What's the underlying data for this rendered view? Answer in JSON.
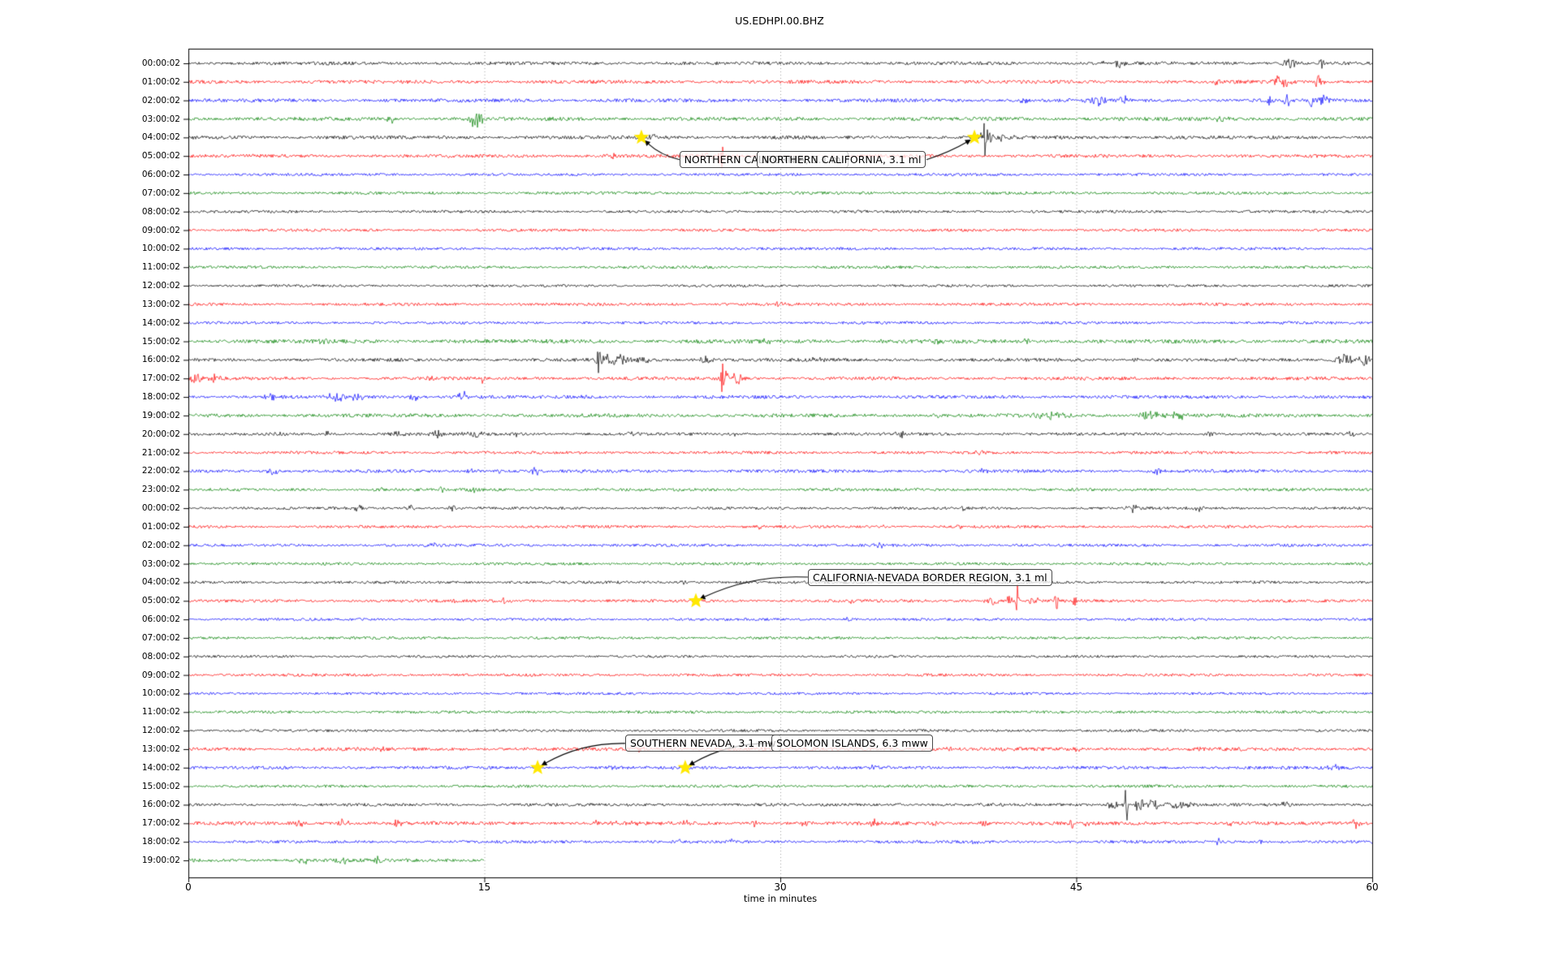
{
  "window": {
    "title": "US.EDHPI.00.BHZ"
  },
  "chart_data": {
    "type": "line",
    "subtype": "helicorder-day-plot",
    "title": "US.EDHPI.00.BHZ",
    "xlabel": "time in minutes",
    "xlim": [
      0,
      60
    ],
    "x_ticks": [
      0,
      15,
      30,
      45,
      60
    ],
    "x_gridlines": [
      15,
      30,
      45
    ],
    "grid": "dotted-vertical",
    "legend": "none",
    "color_cycle": [
      "#000000",
      "#ff0000",
      "#0000ff",
      "#008000"
    ],
    "star_color": "#ffe800",
    "frame_color": "#000000",
    "rows": [
      {
        "label": "00:00:02",
        "noise": 1.8,
        "end": 60,
        "events": [
          [
            46.3,
            3,
            0.2
          ],
          [
            47.2,
            5,
            0.3
          ],
          [
            55.8,
            5,
            0.4
          ],
          [
            57.4,
            9,
            0.12
          ]
        ]
      },
      {
        "label": "01:00:02",
        "noise": 1.9,
        "end": 60,
        "events": [
          [
            52.1,
            4,
            0.15
          ],
          [
            55.4,
            8,
            0.45
          ],
          [
            57.3,
            11,
            0.2
          ]
        ]
      },
      {
        "label": "02:00:02",
        "noise": 1.9,
        "end": 60,
        "events": [
          [
            42.3,
            6,
            0.25
          ],
          [
            46.0,
            7,
            0.45
          ],
          [
            47.5,
            6,
            0.25
          ],
          [
            54.8,
            7,
            0.18
          ],
          [
            55.7,
            8,
            0.2
          ],
          [
            56.9,
            11,
            0.1
          ],
          [
            57.6,
            6,
            0.35
          ]
        ]
      },
      {
        "label": "03:00:02",
        "noise": 2.0,
        "end": 60,
        "events": [
          [
            10.3,
            5,
            0.25
          ],
          [
            14.6,
            12,
            0.3
          ],
          [
            52.3,
            3,
            0.5
          ]
        ]
      },
      {
        "label": "04:00:02",
        "noise": 1.9,
        "end": 60,
        "events": [
          [
            23.6,
            3.5,
            0.4
          ],
          [
            40.37,
            45,
            0.06
          ],
          [
            40.4,
            13,
            0.3
          ],
          [
            41.2,
            5,
            0.6
          ]
        ]
      },
      {
        "label": "05:00:02",
        "noise": 1.8,
        "end": 60,
        "events": [
          [
            21.5,
            3,
            0.3
          ],
          [
            26.3,
            5,
            0.3
          ],
          [
            27.0,
            24,
            0.1
          ]
        ]
      },
      {
        "label": "06:00:02",
        "noise": 1.5,
        "end": 60,
        "events": []
      },
      {
        "label": "07:00:02",
        "noise": 1.6,
        "end": 60,
        "events": []
      },
      {
        "label": "08:00:02",
        "noise": 1.5,
        "end": 60,
        "events": []
      },
      {
        "label": "09:00:02",
        "noise": 1.5,
        "end": 60,
        "events": []
      },
      {
        "label": "10:00:02",
        "noise": 1.5,
        "end": 60,
        "events": []
      },
      {
        "label": "11:00:02",
        "noise": 1.5,
        "end": 60,
        "events": []
      },
      {
        "label": "12:00:02",
        "noise": 1.4,
        "end": 60,
        "events": []
      },
      {
        "label": "13:00:02",
        "noise": 1.6,
        "end": 60,
        "events": [
          [
            30,
            2.5,
            0.4
          ]
        ]
      },
      {
        "label": "14:00:02",
        "noise": 1.5,
        "end": 60,
        "events": []
      },
      {
        "label": "15:00:02",
        "noise": 2.2,
        "end": 60,
        "events": [
          [
            6.8,
            3,
            0.4
          ],
          [
            29.2,
            3.5,
            0.3
          ],
          [
            35,
            2.5,
            0.3
          ],
          [
            38,
            3,
            0.3
          ],
          [
            42.5,
            4,
            0.25
          ]
        ]
      },
      {
        "label": "16:00:02",
        "noise": 1.8,
        "end": 60,
        "events": [
          [
            20.8,
            32,
            0.1
          ],
          [
            21.5,
            8,
            0.8
          ],
          [
            23,
            4,
            0.8
          ],
          [
            26.2,
            6,
            0.4
          ],
          [
            32,
            3,
            0.4
          ],
          [
            48,
            3,
            0.3
          ],
          [
            58.6,
            7,
            0.5
          ],
          [
            59.6,
            6,
            0.3
          ]
        ]
      },
      {
        "label": "17:00:02",
        "noise": 1.8,
        "end": 60,
        "events": [
          [
            0.4,
            6,
            0.3
          ],
          [
            1.3,
            5,
            0.25
          ],
          [
            12.3,
            3,
            0.2
          ],
          [
            14.9,
            7,
            0.1
          ],
          [
            27.1,
            20,
            0.25
          ],
          [
            27.8,
            6,
            0.4
          ]
        ]
      },
      {
        "label": "18:00:02",
        "noise": 1.8,
        "end": 60,
        "events": [
          [
            4.2,
            5,
            0.25
          ],
          [
            7.5,
            6,
            0.5
          ],
          [
            8.5,
            5,
            0.4
          ],
          [
            11.5,
            4,
            0.3
          ],
          [
            13.9,
            7,
            0.3
          ],
          [
            20,
            3,
            0.3
          ]
        ]
      },
      {
        "label": "19:00:02",
        "noise": 2.0,
        "end": 60,
        "events": [
          [
            37.8,
            3,
            0.25
          ],
          [
            43.5,
            4,
            0.9
          ],
          [
            48.8,
            6,
            0.7
          ],
          [
            50.2,
            5,
            0.4
          ]
        ]
      },
      {
        "label": "20:00:02",
        "noise": 1.6,
        "end": 60,
        "events": [
          [
            4.7,
            2.5,
            0.2
          ],
          [
            7.0,
            7,
            0.1
          ],
          [
            10.6,
            4,
            0.5
          ],
          [
            12.6,
            4,
            0.4
          ],
          [
            14.5,
            3,
            0.5
          ],
          [
            16.5,
            4,
            0.35
          ],
          [
            22.6,
            3,
            0.3
          ],
          [
            27.8,
            3,
            0.25
          ],
          [
            36.1,
            4,
            0.35
          ],
          [
            51.8,
            4,
            0.25
          ],
          [
            59,
            3,
            0.3
          ]
        ]
      },
      {
        "label": "21:00:02",
        "noise": 1.6,
        "end": 60,
        "events": [
          [
            40.2,
            3,
            0.25
          ]
        ]
      },
      {
        "label": "22:00:02",
        "noise": 1.7,
        "end": 60,
        "events": [
          [
            4.3,
            5,
            0.35
          ],
          [
            14.3,
            3,
            0.4
          ],
          [
            15.8,
            3,
            0.15
          ],
          [
            17.6,
            6,
            0.2
          ],
          [
            40.3,
            3,
            0.25
          ],
          [
            49,
            4,
            0.35
          ]
        ]
      },
      {
        "label": "23:00:02",
        "noise": 1.6,
        "end": 60,
        "events": [
          [
            9.6,
            3,
            0.25
          ],
          [
            12.9,
            5,
            0.12
          ],
          [
            14.5,
            3,
            0.3
          ]
        ]
      },
      {
        "label": "00:00:02",
        "noise": 1.5,
        "end": 60,
        "events": [
          [
            8.6,
            4,
            0.2
          ],
          [
            11.2,
            4,
            0.25
          ],
          [
            13.4,
            3,
            0.2
          ],
          [
            39.3,
            3,
            0.2
          ],
          [
            47.8,
            5,
            0.35
          ],
          [
            51.3,
            5,
            0.25
          ]
        ]
      },
      {
        "label": "01:00:02",
        "noise": 1.5,
        "end": 60,
        "events": [
          [
            29,
            3,
            0.2
          ],
          [
            35.2,
            5,
            0.12
          ],
          [
            39,
            6,
            0.12
          ]
        ]
      },
      {
        "label": "02:00:02",
        "noise": 1.5,
        "end": 60,
        "events": [
          [
            12.4,
            4,
            0.3
          ],
          [
            35,
            4,
            0.25
          ]
        ]
      },
      {
        "label": "03:00:02",
        "noise": 1.5,
        "end": 60,
        "events": []
      },
      {
        "label": "04:00:02",
        "noise": 1.5,
        "end": 60,
        "events": [
          [
            25.1,
            3.5,
            0.25
          ]
        ]
      },
      {
        "label": "05:00:02",
        "noise": 1.6,
        "end": 60,
        "events": [
          [
            13.5,
            2.5,
            0.2
          ],
          [
            16.0,
            6,
            0.1
          ],
          [
            16.4,
            4,
            0.1
          ],
          [
            33.5,
            2.5,
            0.2
          ],
          [
            40.8,
            5,
            0.4
          ],
          [
            41.6,
            7,
            0.2
          ],
          [
            42.0,
            26,
            0.08
          ],
          [
            42.8,
            6,
            0.3
          ],
          [
            44.0,
            11,
            0.1
          ],
          [
            44.9,
            5,
            0.2
          ]
        ]
      },
      {
        "label": "06:00:02",
        "noise": 1.4,
        "end": 60,
        "events": [
          [
            33.5,
            3,
            0.25
          ]
        ]
      },
      {
        "label": "07:00:02",
        "noise": 1.5,
        "end": 60,
        "events": []
      },
      {
        "label": "08:00:02",
        "noise": 1.3,
        "end": 60,
        "events": []
      },
      {
        "label": "09:00:02",
        "noise": 1.5,
        "end": 60,
        "events": []
      },
      {
        "label": "10:00:02",
        "noise": 1.4,
        "end": 60,
        "events": []
      },
      {
        "label": "11:00:02",
        "noise": 1.5,
        "end": 60,
        "events": []
      },
      {
        "label": "12:00:02",
        "noise": 1.4,
        "end": 60,
        "events": []
      },
      {
        "label": "13:00:02",
        "noise": 1.9,
        "end": 60,
        "events": [
          [
            10,
            2.5,
            0.3
          ],
          [
            20.5,
            3,
            0.4
          ],
          [
            23,
            3,
            0.3
          ],
          [
            31,
            3,
            0.3
          ],
          [
            38.5,
            3,
            0.3
          ],
          [
            45,
            3,
            0.3
          ],
          [
            51,
            2.5,
            0.3
          ]
        ]
      },
      {
        "label": "14:00:02",
        "noise": 1.7,
        "end": 60,
        "events": [
          [
            21.5,
            2.5,
            0.2
          ],
          [
            34.8,
            3,
            0.25
          ],
          [
            58.1,
            4,
            0.3
          ]
        ]
      },
      {
        "label": "15:00:02",
        "noise": 1.5,
        "end": 60,
        "events": []
      },
      {
        "label": "16:00:02",
        "noise": 1.6,
        "end": 60,
        "events": [
          [
            36,
            2.5,
            0.25
          ],
          [
            46.8,
            8,
            0.25
          ],
          [
            47.5,
            36,
            0.09
          ],
          [
            48.2,
            9,
            0.25
          ],
          [
            48.9,
            7,
            0.3
          ],
          [
            50,
            4,
            0.8
          ],
          [
            55.6,
            3,
            0.3
          ]
        ]
      },
      {
        "label": "17:00:02",
        "noise": 1.9,
        "end": 60,
        "events": [
          [
            5.6,
            4,
            0.25
          ],
          [
            7.8,
            5,
            0.3
          ],
          [
            10.6,
            4,
            0.25
          ],
          [
            12.4,
            4,
            0.2
          ],
          [
            20.6,
            4,
            0.25
          ],
          [
            21.6,
            4,
            0.2
          ],
          [
            22.5,
            4,
            0.2
          ],
          [
            25.2,
            3,
            0.2
          ],
          [
            28.7,
            4,
            0.2
          ],
          [
            31.2,
            4,
            0.2
          ],
          [
            34.7,
            5,
            0.2
          ],
          [
            37.7,
            4,
            0.2
          ],
          [
            40.3,
            5,
            0.2
          ],
          [
            43,
            4,
            0.2
          ],
          [
            44.8,
            6,
            0.15
          ],
          [
            45.5,
            4,
            0.2
          ],
          [
            52.8,
            4,
            0.2
          ],
          [
            59.2,
            5,
            0.25
          ]
        ]
      },
      {
        "label": "18:00:02",
        "noise": 1.6,
        "end": 60,
        "events": [
          [
            24.9,
            4,
            0.12
          ],
          [
            27.5,
            2.5,
            0.2
          ],
          [
            33.2,
            4,
            0.2
          ],
          [
            39.8,
            4,
            0.2
          ],
          [
            52.2,
            5,
            0.2
          ],
          [
            54.3,
            4,
            0.2
          ]
        ]
      },
      {
        "label": "19:00:02",
        "noise": 1.9,
        "end": 15,
        "events": [
          [
            5.9,
            4,
            0.3
          ],
          [
            7.8,
            5,
            0.3
          ],
          [
            9.6,
            4,
            0.25
          ]
        ]
      }
    ],
    "annotations": [
      {
        "text": "NORTHERN CALIFORNIA, 3.1 ml",
        "star_row": 4,
        "star_t": 22.96,
        "box_t": 24.88,
        "box_row": 5.2,
        "anchor": "left",
        "bow": 8
      },
      {
        "text": "NORTHERN CALIFORNIA, 3.1 ml",
        "star_row": 4,
        "star_t": 39.84,
        "box_t": 28.8,
        "box_row": 5.2,
        "anchor": "right",
        "bow": 4
      },
      {
        "text": "CALIFORNIA-NEVADA BORDER REGION, 3.1 ml",
        "star_row": 29,
        "star_t": 25.72,
        "box_t": 31.4,
        "box_row": 27.72,
        "anchor": "left",
        "bow": -18
      },
      {
        "text": "SOUTHERN NEVADA, 3.1 mw",
        "star_row": 38,
        "star_t": 17.7,
        "box_t": 22.14,
        "box_row": 36.69,
        "anchor": "left",
        "bow": -16
      },
      {
        "text": "SOLOMON ISLANDS, 6.3 mww",
        "star_row": 38,
        "star_t": 25.18,
        "box_t": 29.55,
        "box_row": 36.69,
        "anchor": "left",
        "bow": -16
      }
    ]
  }
}
